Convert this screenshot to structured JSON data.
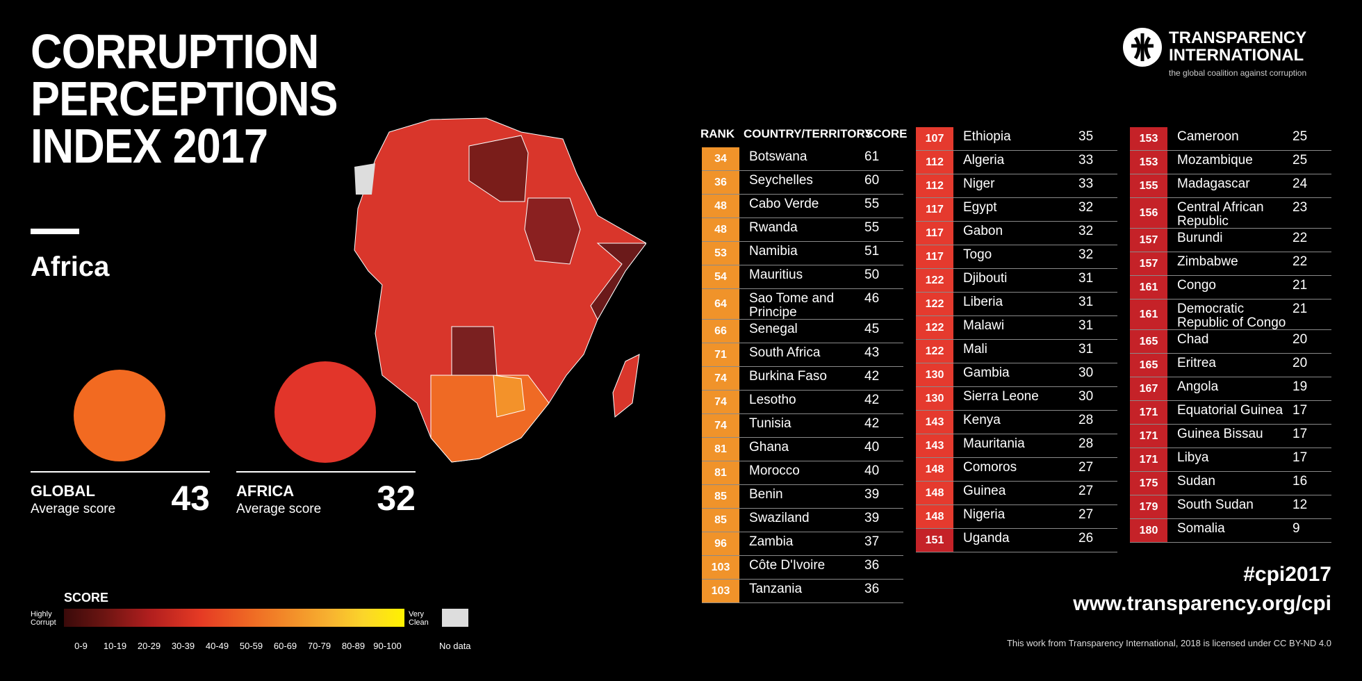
{
  "title": {
    "line1": "CORRUPTION",
    "line2": "PERCEPTIONS",
    "line3": "INDEX 2017"
  },
  "region": "Africa",
  "logo": {
    "name1": "TRANSPARENCY",
    "name2": "INTERNATIONAL",
    "tagline": "the global coalition against corruption"
  },
  "averages": {
    "global": {
      "name": "GLOBAL",
      "sub": "Average score",
      "value": "43",
      "color": "#f26a21"
    },
    "africa": {
      "name": "AFRICA",
      "sub": "Average score",
      "value": "32",
      "color": "#e2352a"
    }
  },
  "table_headers": {
    "rank": "RANK",
    "country": "COUNTRY/TERRITORY",
    "score": "SCORE"
  },
  "colors": {
    "orange": "#f0932a",
    "red": "#e53a2e",
    "dark_red": "#c52228"
  },
  "chart_data": {
    "type": "table",
    "title": "Corruption Perceptions Index 2017 – Africa",
    "columns": [
      "Rank",
      "Country/Territory",
      "Score"
    ],
    "rows": [
      {
        "rank": "34",
        "country": "Botswana",
        "score": "61"
      },
      {
        "rank": "36",
        "country": "Seychelles",
        "score": "60"
      },
      {
        "rank": "48",
        "country": "Cabo Verde",
        "score": "55"
      },
      {
        "rank": "48",
        "country": "Rwanda",
        "score": "55"
      },
      {
        "rank": "53",
        "country": "Namibia",
        "score": "51"
      },
      {
        "rank": "54",
        "country": "Mauritius",
        "score": "50"
      },
      {
        "rank": "64",
        "country": "Sao Tome and Principe",
        "score": "46"
      },
      {
        "rank": "66",
        "country": "Senegal",
        "score": "45"
      },
      {
        "rank": "71",
        "country": "South Africa",
        "score": "43"
      },
      {
        "rank": "74",
        "country": "Burkina Faso",
        "score": "42"
      },
      {
        "rank": "74",
        "country": "Lesotho",
        "score": "42"
      },
      {
        "rank": "74",
        "country": "Tunisia",
        "score": "42"
      },
      {
        "rank": "81",
        "country": "Ghana",
        "score": "40"
      },
      {
        "rank": "81",
        "country": "Morocco",
        "score": "40"
      },
      {
        "rank": "85",
        "country": "Benin",
        "score": "39"
      },
      {
        "rank": "85",
        "country": "Swaziland",
        "score": "39"
      },
      {
        "rank": "96",
        "country": "Zambia",
        "score": "37"
      },
      {
        "rank": "103",
        "country": "Côte D'Ivoire",
        "score": "36"
      },
      {
        "rank": "103",
        "country": "Tanzania",
        "score": "36"
      },
      {
        "rank": "107",
        "country": "Ethiopia",
        "score": "35"
      },
      {
        "rank": "112",
        "country": "Algeria",
        "score": "33"
      },
      {
        "rank": "112",
        "country": "Niger",
        "score": "33"
      },
      {
        "rank": "117",
        "country": "Egypt",
        "score": "32"
      },
      {
        "rank": "117",
        "country": "Gabon",
        "score": "32"
      },
      {
        "rank": "117",
        "country": "Togo",
        "score": "32"
      },
      {
        "rank": "122",
        "country": "Djibouti",
        "score": "31"
      },
      {
        "rank": "122",
        "country": "Liberia",
        "score": "31"
      },
      {
        "rank": "122",
        "country": "Malawi",
        "score": "31"
      },
      {
        "rank": "122",
        "country": "Mali",
        "score": "31"
      },
      {
        "rank": "130",
        "country": "Gambia",
        "score": "30"
      },
      {
        "rank": "130",
        "country": "Sierra Leone",
        "score": "30"
      },
      {
        "rank": "143",
        "country": "Kenya",
        "score": "28"
      },
      {
        "rank": "143",
        "country": "Mauritania",
        "score": "28"
      },
      {
        "rank": "148",
        "country": "Comoros",
        "score": "27"
      },
      {
        "rank": "148",
        "country": "Guinea",
        "score": "27"
      },
      {
        "rank": "148",
        "country": "Nigeria",
        "score": "27"
      },
      {
        "rank": "151",
        "country": "Uganda",
        "score": "26"
      },
      {
        "rank": "153",
        "country": "Cameroon",
        "score": "25"
      },
      {
        "rank": "153",
        "country": "Mozambique",
        "score": "25"
      },
      {
        "rank": "155",
        "country": "Madagascar",
        "score": "24"
      },
      {
        "rank": "156",
        "country": "Central African Republic",
        "score": "23"
      },
      {
        "rank": "157",
        "country": "Burundi",
        "score": "22"
      },
      {
        "rank": "157",
        "country": "Zimbabwe",
        "score": "22"
      },
      {
        "rank": "161",
        "country": "Congo",
        "score": "21"
      },
      {
        "rank": "161",
        "country": "Democratic Republic of Congo",
        "score": "21"
      },
      {
        "rank": "165",
        "country": "Chad",
        "score": "20"
      },
      {
        "rank": "165",
        "country": "Eritrea",
        "score": "20"
      },
      {
        "rank": "167",
        "country": "Angola",
        "score": "19"
      },
      {
        "rank": "171",
        "country": "Equatorial Guinea",
        "score": "17"
      },
      {
        "rank": "171",
        "country": "Guinea Bissau",
        "score": "17"
      },
      {
        "rank": "171",
        "country": "Libya",
        "score": "17"
      },
      {
        "rank": "175",
        "country": "Sudan",
        "score": "16"
      },
      {
        "rank": "179",
        "country": "South Sudan",
        "score": "12"
      },
      {
        "rank": "180",
        "country": "Somalia",
        "score": "9"
      }
    ]
  },
  "legend": {
    "title": "SCORE",
    "low": "Highly Corrupt",
    "high": "Very Clean",
    "ranges": [
      "0-9",
      "10-19",
      "20-29",
      "30-39",
      "40-49",
      "50-59",
      "60-69",
      "70-79",
      "80-89",
      "90-100"
    ],
    "no_data": "No data"
  },
  "footer": {
    "hashtag": "#cpi2017",
    "url": "www.transparency.org/cpi",
    "license": "This work from Transparency International, 2018 is licensed under CC BY-ND 4.0"
  }
}
